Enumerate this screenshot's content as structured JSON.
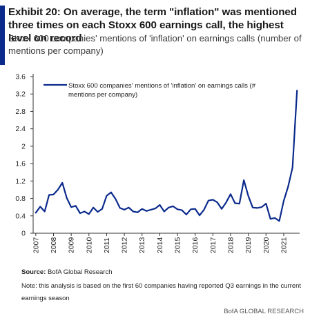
{
  "header": {
    "title": "Exhibit 20: On average, the term \"inflation\" was mentioned three times on each Stoxx 600 earnings call, the highest level on record",
    "subtitle": "Stoxx 600 companies' mentions of 'inflation' on earnings calls (number of mentions per company)"
  },
  "footer": {
    "source_label": "Source:",
    "source_text": "BofA Global Research",
    "note": "Note: this analysis is based on the first 60 companies having reported Q3 earnings in the current earnings season",
    "brand": "BofA GLOBAL RESEARCH"
  },
  "colors": {
    "accent": "#0a2a8c",
    "line": "#0a2a8c"
  },
  "chart_data": {
    "type": "line",
    "title": "",
    "xlabel": "",
    "ylabel": "",
    "ylim": [
      0,
      3.6
    ],
    "yticks": [
      "0",
      "0.4",
      "0.8",
      "1.2",
      "1.6",
      "2",
      "2.4",
      "2.8",
      "3.2",
      "3.6"
    ],
    "x_tick_labels": [
      "2007",
      "2008",
      "2009",
      "2010",
      "2011",
      "2012",
      "2013",
      "2014",
      "2015",
      "2016",
      "2017",
      "2018",
      "2019",
      "2020",
      "2021"
    ],
    "grid": false,
    "legend_position": "top-left",
    "series": [
      {
        "name": "Stoxx 600 companies' mentions  of 'inflation'  on earnings calls (# mentions  per company)",
        "x": [
          2007.0,
          2007.25,
          2007.5,
          2007.75,
          2008.0,
          2008.25,
          2008.5,
          2008.75,
          2009.0,
          2009.25,
          2009.5,
          2009.75,
          2010.0,
          2010.25,
          2010.5,
          2010.75,
          2011.0,
          2011.25,
          2011.5,
          2011.75,
          2012.0,
          2012.25,
          2012.5,
          2012.75,
          2013.0,
          2013.25,
          2013.5,
          2013.75,
          2014.0,
          2014.25,
          2014.5,
          2014.75,
          2015.0,
          2015.25,
          2015.5,
          2015.75,
          2016.0,
          2016.25,
          2016.5,
          2016.75,
          2017.0,
          2017.25,
          2017.5,
          2017.75,
          2018.0,
          2018.25,
          2018.5,
          2018.75,
          2019.0,
          2019.25,
          2019.5,
          2019.75,
          2020.0,
          2020.25,
          2020.5,
          2020.75,
          2021.0,
          2021.25,
          2021.5,
          2021.75
        ],
        "values": [
          0.47,
          0.61,
          0.5,
          0.88,
          0.89,
          1.0,
          1.16,
          0.81,
          0.6,
          0.63,
          0.46,
          0.5,
          0.44,
          0.59,
          0.49,
          0.56,
          0.86,
          0.94,
          0.79,
          0.58,
          0.54,
          0.59,
          0.5,
          0.48,
          0.56,
          0.51,
          0.54,
          0.57,
          0.65,
          0.5,
          0.59,
          0.62,
          0.55,
          0.53,
          0.43,
          0.55,
          0.56,
          0.41,
          0.54,
          0.75,
          0.77,
          0.71,
          0.56,
          0.71,
          0.9,
          0.69,
          0.68,
          1.22,
          0.86,
          0.59,
          0.58,
          0.6,
          0.68,
          0.33,
          0.35,
          0.28,
          0.74,
          1.07,
          1.51,
          3.28
        ]
      }
    ]
  }
}
